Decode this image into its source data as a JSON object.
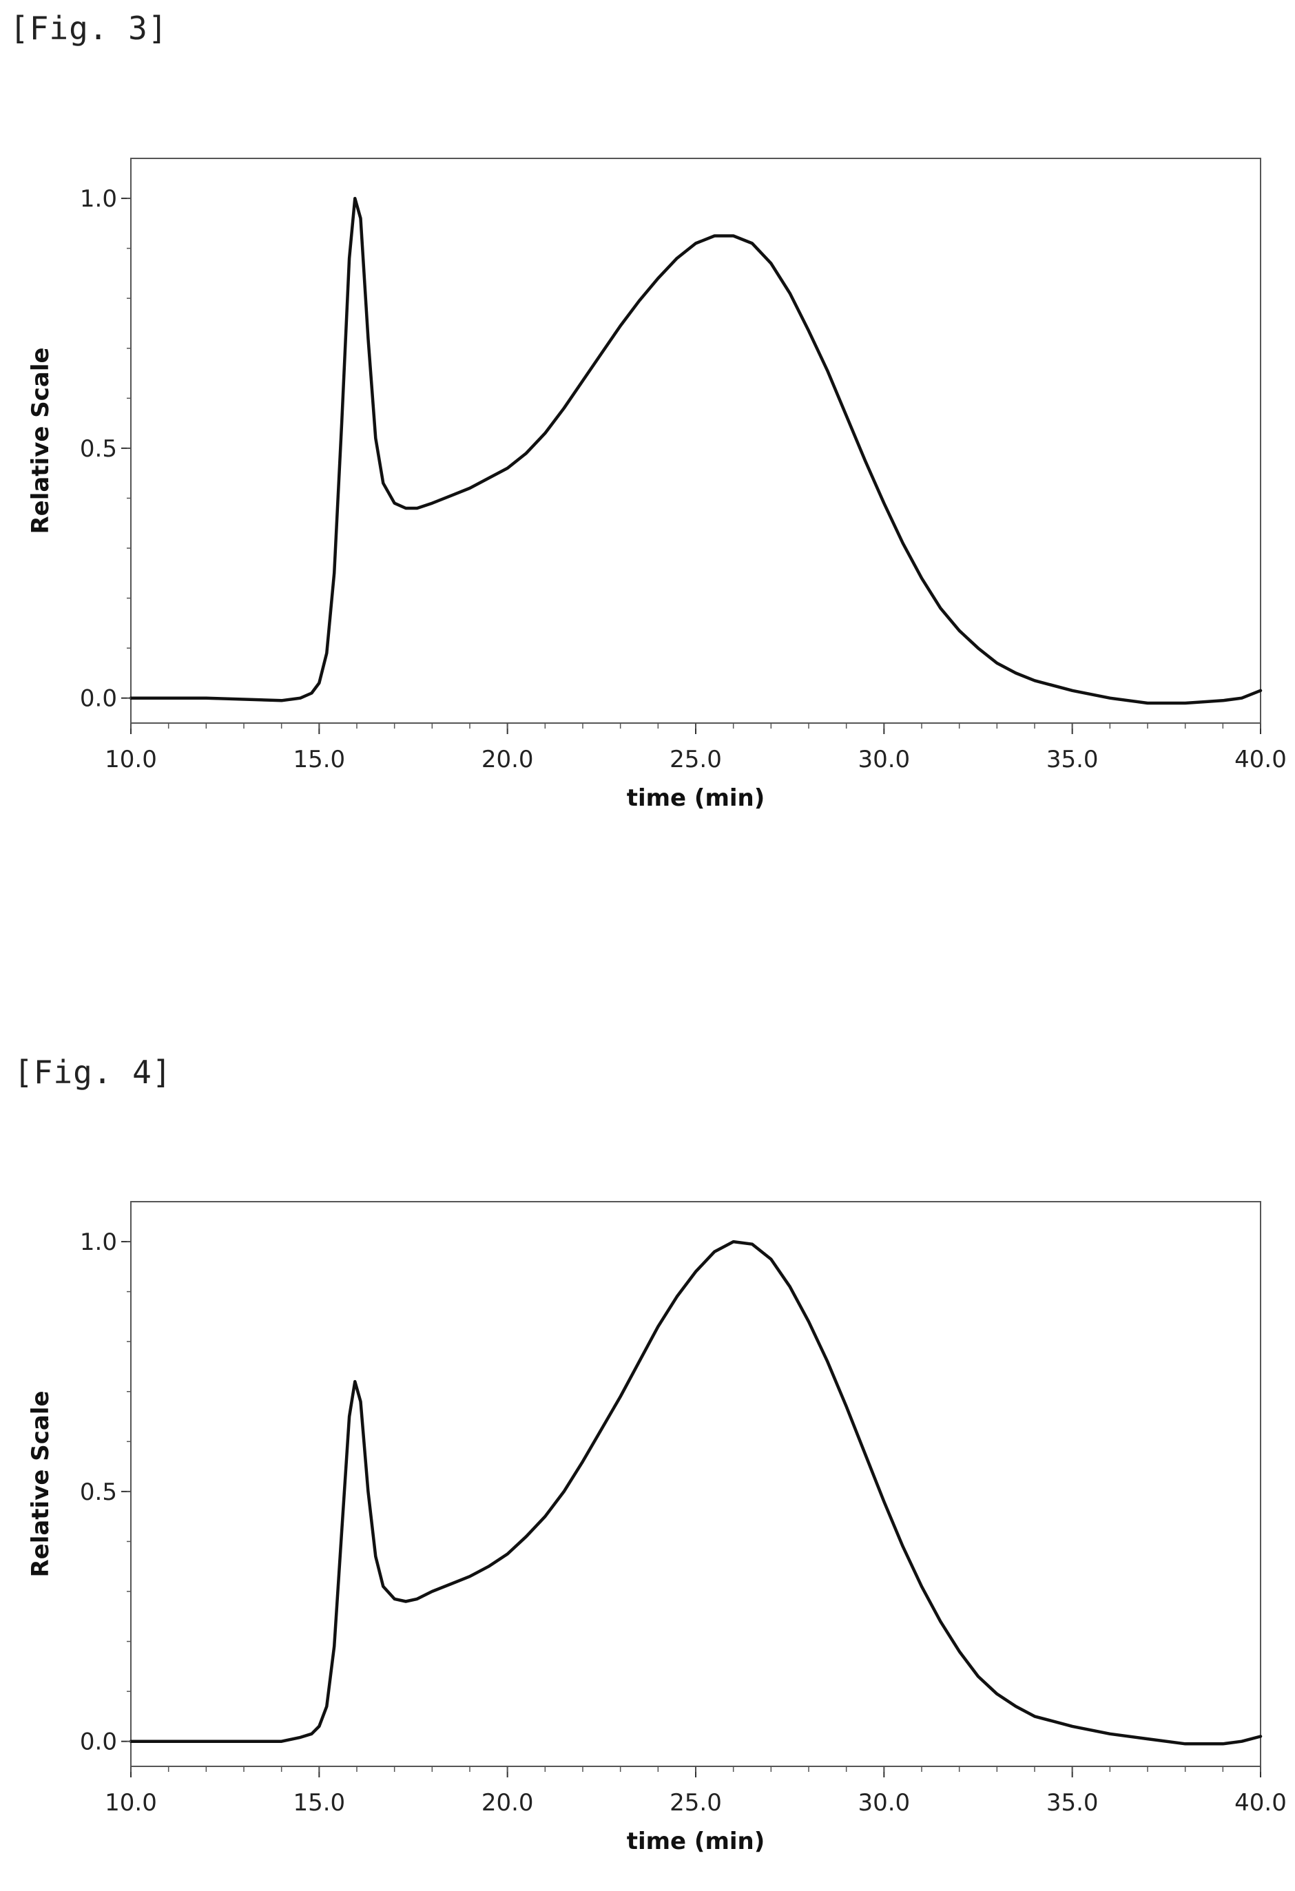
{
  "figures": [
    {
      "label": "[Fig. 3]"
    },
    {
      "label": "[Fig. 4]"
    }
  ],
  "chart_data": [
    {
      "type": "line",
      "title": "",
      "xlabel": "time (min)",
      "ylabel": "Relative Scale",
      "xlim": [
        10.0,
        40.0
      ],
      "ylim": [
        -0.05,
        1.08
      ],
      "xticks": [
        "10.0",
        "15.0",
        "20.0",
        "25.0",
        "30.0",
        "35.0",
        "40.0"
      ],
      "yticks": [
        "0.0",
        "0.5",
        "1.0"
      ],
      "grid": false,
      "legend": "none",
      "line_color": "#111111",
      "series": [
        {
          "x": [
            10.0,
            12.0,
            14.0,
            14.5,
            14.8,
            15.0,
            15.2,
            15.4,
            15.6,
            15.8,
            15.95,
            16.1,
            16.3,
            16.5,
            16.7,
            17.0,
            17.3,
            17.6,
            18.0,
            18.5,
            19.0,
            19.5,
            20.0,
            20.5,
            21.0,
            21.5,
            22.0,
            22.5,
            23.0,
            23.5,
            24.0,
            24.5,
            25.0,
            25.5,
            26.0,
            26.5,
            27.0,
            27.5,
            28.0,
            28.5,
            29.0,
            29.5,
            30.0,
            30.5,
            31.0,
            31.5,
            32.0,
            32.5,
            33.0,
            33.5,
            34.0,
            35.0,
            36.0,
            37.0,
            38.0,
            39.0,
            39.5,
            40.0
          ],
          "y": [
            0.0,
            0.0,
            -0.005,
            0.0,
            0.01,
            0.03,
            0.09,
            0.25,
            0.55,
            0.88,
            1.0,
            0.96,
            0.72,
            0.52,
            0.43,
            0.39,
            0.38,
            0.38,
            0.39,
            0.405,
            0.42,
            0.44,
            0.46,
            0.49,
            0.53,
            0.58,
            0.635,
            0.69,
            0.745,
            0.795,
            0.84,
            0.88,
            0.91,
            0.925,
            0.925,
            0.91,
            0.87,
            0.81,
            0.735,
            0.655,
            0.565,
            0.475,
            0.39,
            0.31,
            0.24,
            0.18,
            0.135,
            0.1,
            0.07,
            0.05,
            0.035,
            0.015,
            0.0,
            -0.01,
            -0.01,
            -0.005,
            0.0,
            0.015
          ]
        }
      ]
    },
    {
      "type": "line",
      "title": "",
      "xlabel": "time (min)",
      "ylabel": "Relative Scale",
      "xlim": [
        10.0,
        40.0
      ],
      "ylim": [
        -0.05,
        1.08
      ],
      "xticks": [
        "10.0",
        "15.0",
        "20.0",
        "25.0",
        "30.0",
        "35.0",
        "40.0"
      ],
      "yticks": [
        "0.0",
        "0.5",
        "1.0"
      ],
      "grid": false,
      "legend": "none",
      "line_color": "#111111",
      "series": [
        {
          "x": [
            10.0,
            12.0,
            14.0,
            14.5,
            14.8,
            15.0,
            15.2,
            15.4,
            15.6,
            15.8,
            15.95,
            16.1,
            16.3,
            16.5,
            16.7,
            17.0,
            17.3,
            17.6,
            18.0,
            18.5,
            19.0,
            19.5,
            20.0,
            20.5,
            21.0,
            21.5,
            22.0,
            22.5,
            23.0,
            23.5,
            24.0,
            24.5,
            25.0,
            25.5,
            26.0,
            26.5,
            27.0,
            27.5,
            28.0,
            28.5,
            29.0,
            29.5,
            30.0,
            30.5,
            31.0,
            31.5,
            32.0,
            32.5,
            33.0,
            33.5,
            34.0,
            35.0,
            36.0,
            37.0,
            38.0,
            39.0,
            39.5,
            40.0
          ],
          "y": [
            0.0,
            0.0,
            0.0,
            0.008,
            0.015,
            0.03,
            0.07,
            0.19,
            0.42,
            0.65,
            0.72,
            0.68,
            0.5,
            0.37,
            0.31,
            0.285,
            0.28,
            0.285,
            0.3,
            0.315,
            0.33,
            0.35,
            0.375,
            0.41,
            0.45,
            0.5,
            0.56,
            0.625,
            0.69,
            0.76,
            0.83,
            0.89,
            0.94,
            0.98,
            1.0,
            0.995,
            0.965,
            0.91,
            0.84,
            0.76,
            0.67,
            0.575,
            0.48,
            0.39,
            0.31,
            0.24,
            0.18,
            0.13,
            0.095,
            0.07,
            0.05,
            0.03,
            0.015,
            0.005,
            -0.005,
            -0.005,
            0.0,
            0.01
          ]
        }
      ]
    }
  ]
}
